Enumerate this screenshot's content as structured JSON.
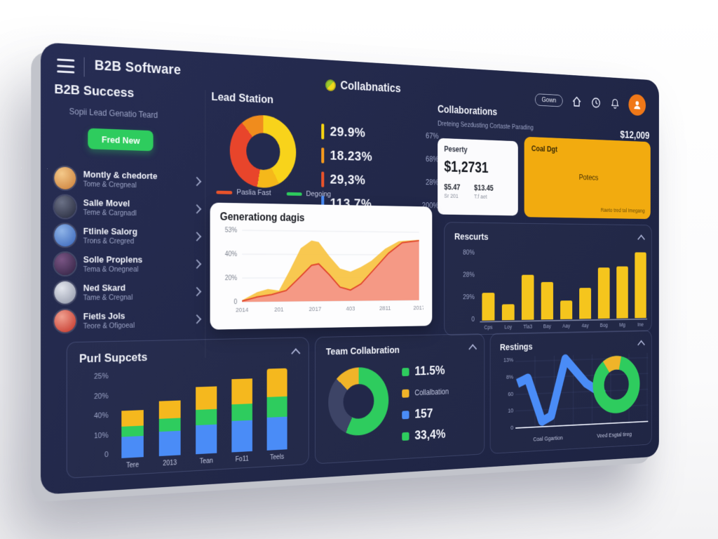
{
  "app": {
    "title": "B2B Software",
    "logo_text": "Collabnatics"
  },
  "topbar": {
    "pill_label": "Gown"
  },
  "sidebar": {
    "heading": "B2B Success",
    "subtitle": "Sopii Lead Genatio Teard",
    "button_label": "Fred New",
    "items": [
      {
        "name": "Montly & chedorte",
        "subtitle": "Tome & Cregneal",
        "avatar_colors": [
          "#f4c98a",
          "#c97b35"
        ]
      },
      {
        "name": "Salle Movel",
        "subtitle": "Teme & Cargnadl",
        "avatar_colors": [
          "#6b7186",
          "#23273a"
        ]
      },
      {
        "name": "Ftlinle Salorg",
        "subtitle": "Trons & Cregred",
        "avatar_colors": [
          "#8fb4e8",
          "#3562b8"
        ]
      },
      {
        "name": "Solle Proplens",
        "subtitle": "Tema & Onegneal",
        "avatar_colors": [
          "#7a5584",
          "#2e2040"
        ]
      },
      {
        "name": "Ned Skard",
        "subtitle": "Tame & Cregnal",
        "avatar_colors": [
          "#e3e6ee",
          "#8d93a5"
        ]
      },
      {
        "name": "Fietls Jols",
        "subtitle": "Teore & Ofigoeal",
        "avatar_colors": [
          "#f0a090",
          "#c22f23"
        ]
      }
    ]
  },
  "lead_station": {
    "title": "Lead Station",
    "donut": {
      "segments": [
        {
          "color": "#f8d31b",
          "pct": 42
        },
        {
          "color": "#f5b81a",
          "pct": 11
        },
        {
          "color": "#e8452b",
          "pct": 36
        },
        {
          "color": "#f08c1d",
          "pct": 11
        }
      ]
    },
    "legend": [
      {
        "color": "#f5d312",
        "value": "29.9%",
        "side": "67%"
      },
      {
        "color": "#f59a1d",
        "value": "18.23%",
        "side": "68%"
      },
      {
        "color": "#e8532b",
        "value": "29,3%",
        "side": "28%"
      },
      {
        "color": "#4a8cf7",
        "value": "113,7%",
        "side": "200%"
      }
    ],
    "series_legend": [
      {
        "color": "#e8532b",
        "label": "Paslia Fast"
      },
      {
        "color": "#2ecc5e",
        "label": "Degoing"
      }
    ]
  },
  "collaborations": {
    "title": "Collaborations",
    "subtitle": "Dreteing Sezdusting Cortaste Parading",
    "amount": "$12,009",
    "white_card": {
      "title": "Peserty",
      "big_value": "$1,2731",
      "stats": [
        {
          "value": "$5.47",
          "label": "Sr 201"
        },
        {
          "value": "$13.45",
          "label": "T.f aet"
        }
      ]
    },
    "orange_card": {
      "title": "Coal Dgt",
      "center_label": "Potecs",
      "footnote": "Raeto tred tal Imegang",
      "bg": "#f2ab0f"
    }
  },
  "generation_chart": {
    "title": "Generationg dagis",
    "type": "area",
    "y_ticks": [
      "53%",
      "40%",
      "20%",
      "0"
    ],
    "x_ticks": [
      "2014",
      "201",
      "2017",
      "403",
      "2811",
      "2017"
    ],
    "y_max": 90,
    "series": [
      {
        "name": "upper",
        "color": "#f7c341",
        "points": [
          [
            0,
            2
          ],
          [
            8,
            12
          ],
          [
            14,
            16
          ],
          [
            20,
            14
          ],
          [
            26,
            40
          ],
          [
            32,
            68
          ],
          [
            38,
            78
          ],
          [
            42,
            76
          ],
          [
            48,
            58
          ],
          [
            54,
            42
          ],
          [
            60,
            38
          ],
          [
            66,
            44
          ],
          [
            72,
            52
          ],
          [
            80,
            68
          ],
          [
            88,
            78
          ],
          [
            100,
            80
          ]
        ]
      },
      {
        "name": "lower",
        "color": "#f4918e",
        "line_color": "#e0452c",
        "points": [
          [
            0,
            1
          ],
          [
            8,
            6
          ],
          [
            16,
            9
          ],
          [
            24,
            14
          ],
          [
            32,
            32
          ],
          [
            38,
            46
          ],
          [
            42,
            48
          ],
          [
            48,
            34
          ],
          [
            54,
            18
          ],
          [
            60,
            14
          ],
          [
            66,
            22
          ],
          [
            74,
            42
          ],
          [
            82,
            62
          ],
          [
            90,
            76
          ],
          [
            100,
            79
          ]
        ]
      }
    ]
  },
  "rescurts": {
    "title": "Rescurts",
    "type": "bar",
    "color": "#f5c51d",
    "y_ticks": [
      "80%",
      "28%",
      "29%",
      "0"
    ],
    "categories": [
      "Cps",
      "Loy",
      "Tla3",
      "Bay",
      "Aay",
      "4ay",
      "Bog",
      "Mg",
      "Ine"
    ],
    "values": [
      40,
      23,
      66,
      55,
      28,
      46,
      77,
      79,
      100
    ]
  },
  "purl": {
    "title": "Purl Supcets",
    "type": "stacked-bar",
    "y_ticks": [
      "25%",
      "20%",
      "40%",
      "10%",
      "0"
    ],
    "categories": [
      "Tere",
      "2013",
      "Tean",
      "Fo11",
      "Teels"
    ],
    "series": [
      {
        "name": "blue",
        "color": "#4a8cf7",
        "values": [
          25,
          29,
          35,
          38,
          40
        ]
      },
      {
        "name": "green",
        "color": "#2ecc5e",
        "values": [
          12,
          15,
          18,
          20,
          25
        ]
      },
      {
        "name": "yellow",
        "color": "#f5b81e",
        "values": [
          19,
          21,
          28,
          31,
          35
        ]
      }
    ]
  },
  "team": {
    "title": "Team Collabration",
    "donut": {
      "segments": [
        {
          "color": "#2ecc5e",
          "pct": 57
        },
        {
          "color": "#3d4466",
          "pct": 30
        },
        {
          "color": "#f0b429",
          "pct": 13
        }
      ]
    },
    "legend": [
      {
        "color": "#2ecc5e",
        "value": "11.5%"
      },
      {
        "color": "#f0b429",
        "value": "Collalbation"
      },
      {
        "color": "#4a8cf7",
        "value": "157"
      },
      {
        "color": "#2ecc5e",
        "value": "33,4%"
      }
    ]
  },
  "restings": {
    "title": "Restings",
    "y_ticks": [
      "13%",
      "8%",
      "60",
      "10",
      "0"
    ],
    "x_ticks": [
      "Coal Ggartion",
      "Veed Esgtal tireg"
    ],
    "ribbon": {
      "color": "#4a8cf7",
      "points": [
        [
          4,
          48
        ],
        [
          24,
          40
        ],
        [
          52,
          112
        ],
        [
          70,
          104
        ],
        [
          98,
          10
        ],
        [
          140,
          52
        ],
        [
          176,
          72
        ]
      ]
    },
    "donut": {
      "green": "#2ecc5e",
      "yellow": "#f0b429"
    }
  }
}
